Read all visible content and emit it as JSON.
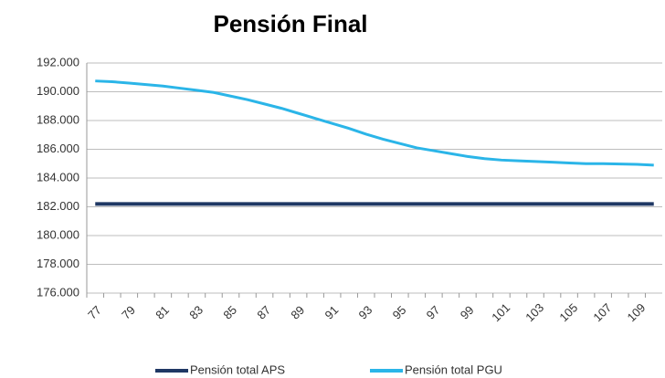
{
  "chart_data": {
    "type": "line",
    "title": "Pensión Final",
    "categories": [
      "77",
      null,
      "79",
      null,
      "81",
      null,
      "83",
      null,
      "85",
      null,
      "87",
      null,
      "89",
      null,
      "91",
      null,
      "93",
      null,
      "95",
      null,
      "97",
      null,
      "99",
      null,
      "101",
      null,
      "103",
      null,
      "105",
      null,
      "107",
      null,
      "109",
      null
    ],
    "series": [
      {
        "name": "Pensión total APS",
        "color": "#1f3864",
        "values": [
          182200,
          182200,
          182200,
          182200,
          182200,
          182200,
          182200,
          182200,
          182200,
          182200,
          182200,
          182200,
          182200,
          182200,
          182200,
          182200,
          182200,
          182200,
          182200,
          182200,
          182200,
          182200,
          182200,
          182200,
          182200,
          182200,
          182200,
          182200,
          182200,
          182200,
          182200,
          182200,
          182200,
          182200
        ]
      },
      {
        "name": "Pensión total PGU",
        "color": "#2bb5e8",
        "values": [
          190750,
          190700,
          190600,
          190500,
          190400,
          190250,
          190100,
          189950,
          189700,
          189450,
          189150,
          188850,
          188500,
          188150,
          187800,
          187450,
          187050,
          186700,
          186400,
          186100,
          185900,
          185700,
          185500,
          185350,
          185250,
          185200,
          185150,
          185100,
          185050,
          185000,
          185000,
          184980,
          184950,
          184900
        ]
      }
    ],
    "ylim": [
      176000,
      192000
    ],
    "yticks": [
      {
        "value": 176000,
        "label": "176.000"
      },
      {
        "value": 178000,
        "label": "178.000"
      },
      {
        "value": 180000,
        "label": "180.000"
      },
      {
        "value": 182000,
        "label": "182.000"
      },
      {
        "value": 184000,
        "label": "184.000"
      },
      {
        "value": 186000,
        "label": "186.000"
      },
      {
        "value": 188000,
        "label": "188.000"
      },
      {
        "value": 190000,
        "label": "190.000"
      },
      {
        "value": 192000,
        "label": "192.000"
      }
    ],
    "grid": true,
    "legend": "bottom"
  }
}
